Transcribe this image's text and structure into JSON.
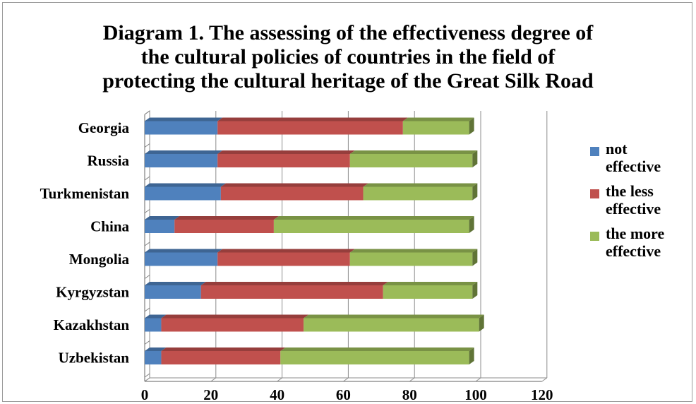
{
  "chart_data": {
    "type": "bar",
    "orientation": "horizontal",
    "stacked": true,
    "style": "3d",
    "title_lines": [
      "Diagram 1. The assessing of the effectiveness degree of",
      "the cultural policies of countries in the field of",
      "protecting the cultural heritage of the Great Silk Road"
    ],
    "categories": [
      "Georgia",
      "Russia",
      "Turkmenistan",
      "China",
      "Mongolia",
      "Kyrgyzstan",
      "Kazakhstan",
      "Uzbekistan"
    ],
    "series": [
      {
        "name_lines": [
          "not",
          "effective"
        ],
        "color": "#4f81bd",
        "values": [
          22,
          22,
          23,
          9,
          22,
          17,
          5,
          5
        ]
      },
      {
        "name_lines": [
          "the less",
          "effective"
        ],
        "color": "#c0504d",
        "values": [
          56,
          40,
          43,
          30,
          40,
          55,
          43,
          36
        ]
      },
      {
        "name_lines": [
          "the more",
          "effective"
        ],
        "color": "#9bbb59",
        "values": [
          20,
          37,
          33,
          59,
          37,
          27,
          53,
          57
        ]
      }
    ],
    "xlim": [
      0,
      120
    ],
    "x_ticks": [
      "0",
      "20",
      "40",
      "60",
      "80",
      "100",
      "120"
    ],
    "grid": true,
    "legend_position": "right"
  }
}
